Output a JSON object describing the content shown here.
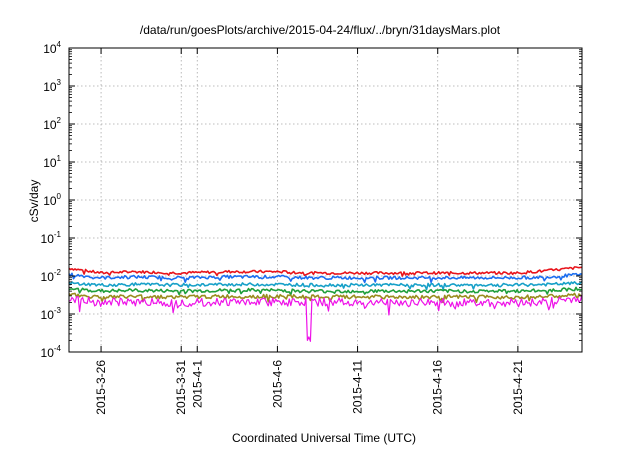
{
  "chart_data": {
    "type": "line",
    "title": "/data/run/goesPlots/archive/2015-04-24/flux/../bryn/31daysMars.plot",
    "xlabel": "Coordinated Universal Time (UTC)",
    "ylabel": "cSv/day",
    "y_scale": "log",
    "ylim": [
      0.0001,
      10000
    ],
    "y_ticks": [
      {
        "base": "10",
        "exp": "-4",
        "value": 0.0001
      },
      {
        "base": "10",
        "exp": "-3",
        "value": 0.001
      },
      {
        "base": "10",
        "exp": "-2",
        "value": 0.01
      },
      {
        "base": "10",
        "exp": "-1",
        "value": 0.1
      },
      {
        "base": "10",
        "exp": "0",
        "value": 1
      },
      {
        "base": "10",
        "exp": "1",
        "value": 10
      },
      {
        "base": "10",
        "exp": "2",
        "value": 100
      },
      {
        "base": "10",
        "exp": "3",
        "value": 1000
      },
      {
        "base": "10",
        "exp": "4",
        "value": 10000
      }
    ],
    "xlim": [
      "2015-03-24",
      "2015-04-25"
    ],
    "x_ticks": [
      {
        "label": "2015-3-26",
        "date": "2015-03-26"
      },
      {
        "label": "2015-3-31",
        "date": "2015-03-31"
      },
      {
        "label": "2015-4-1",
        "date": "2015-04-01"
      },
      {
        "label": "2015-4-6",
        "date": "2015-04-06"
      },
      {
        "label": "2015-4-11",
        "date": "2015-04-11"
      },
      {
        "label": "2015-4-16",
        "date": "2015-04-16"
      },
      {
        "label": "2015-4-21",
        "date": "2015-04-21"
      }
    ],
    "x_tick_dates": [
      "2015-03-26",
      "2015-03-31",
      "2015-04-01",
      "2015-04-06",
      "2015-04-11",
      "2015-04-16",
      "2015-04-21"
    ],
    "grid": true,
    "legend": "none",
    "series": [
      {
        "color": "#e8141b",
        "x": [
          "2015-03-24",
          "2015-03-26",
          "2015-03-28",
          "2015-03-31",
          "2015-04-03",
          "2015-04-06",
          "2015-04-08",
          "2015-04-11",
          "2015-04-14",
          "2015-04-16",
          "2015-04-18",
          "2015-04-21",
          "2015-04-23",
          "2015-04-25"
        ],
        "values": [
          0.016,
          0.012,
          0.013,
          0.012,
          0.013,
          0.013,
          0.012,
          0.012,
          0.012,
          0.012,
          0.012,
          0.012,
          0.014,
          0.017
        ]
      },
      {
        "color": "#1c6ef0",
        "x": [
          "2015-03-24",
          "2015-03-26",
          "2015-03-28",
          "2015-03-31",
          "2015-04-03",
          "2015-04-06",
          "2015-04-08",
          "2015-04-11",
          "2015-04-14",
          "2015-04-16",
          "2015-04-18",
          "2015-04-21",
          "2015-04-23",
          "2015-04-25"
        ],
        "values": [
          0.011,
          0.009,
          0.0095,
          0.009,
          0.0095,
          0.0095,
          0.009,
          0.009,
          0.009,
          0.009,
          0.009,
          0.009,
          0.0095,
          0.011
        ]
      },
      {
        "color": "#17a0c8",
        "x": [
          "2015-03-24",
          "2015-03-26",
          "2015-03-28",
          "2015-03-31",
          "2015-04-03",
          "2015-04-06",
          "2015-04-08",
          "2015-04-11",
          "2015-04-14",
          "2015-04-16",
          "2015-04-18",
          "2015-04-21",
          "2015-04-23",
          "2015-04-25"
        ],
        "values": [
          0.0065,
          0.0058,
          0.006,
          0.0058,
          0.006,
          0.006,
          0.0058,
          0.0058,
          0.0058,
          0.0058,
          0.0058,
          0.0058,
          0.006,
          0.0066
        ]
      },
      {
        "color": "#1f9e3b",
        "x": [
          "2015-03-24",
          "2015-03-26",
          "2015-03-28",
          "2015-03-31",
          "2015-04-03",
          "2015-04-06",
          "2015-04-08",
          "2015-04-11",
          "2015-04-14",
          "2015-04-16",
          "2015-04-18",
          "2015-04-21",
          "2015-04-23",
          "2015-04-25"
        ],
        "values": [
          0.0046,
          0.004,
          0.0042,
          0.004,
          0.0042,
          0.0042,
          0.004,
          0.004,
          0.004,
          0.004,
          0.004,
          0.004,
          0.0042,
          0.0047
        ]
      },
      {
        "color": "#9a8c1e",
        "x": [
          "2015-03-24",
          "2015-03-26",
          "2015-03-28",
          "2015-03-31",
          "2015-04-03",
          "2015-04-06",
          "2015-04-08",
          "2015-04-11",
          "2015-04-14",
          "2015-04-16",
          "2015-04-18",
          "2015-04-21",
          "2015-04-23",
          "2015-04-25"
        ],
        "values": [
          0.0032,
          0.0028,
          0.0029,
          0.0028,
          0.0029,
          0.0029,
          0.0028,
          0.0028,
          0.0028,
          0.0028,
          0.0028,
          0.0028,
          0.0029,
          0.0032
        ]
      },
      {
        "color": "#ee12e8",
        "x": [
          "2015-03-24",
          "2015-03-26",
          "2015-03-28",
          "2015-03-31",
          "2015-04-03",
          "2015-04-06",
          "2015-04-08",
          "2015-04-11",
          "2015-04-14",
          "2015-04-16",
          "2015-04-18",
          "2015-04-21",
          "2015-04-23",
          "2015-04-25"
        ],
        "values": [
          0.0025,
          0.002,
          0.0021,
          0.002,
          0.0021,
          0.0021,
          0.0002,
          0.002,
          0.002,
          0.002,
          0.002,
          0.002,
          0.0021,
          0.0026
        ]
      }
    ]
  }
}
